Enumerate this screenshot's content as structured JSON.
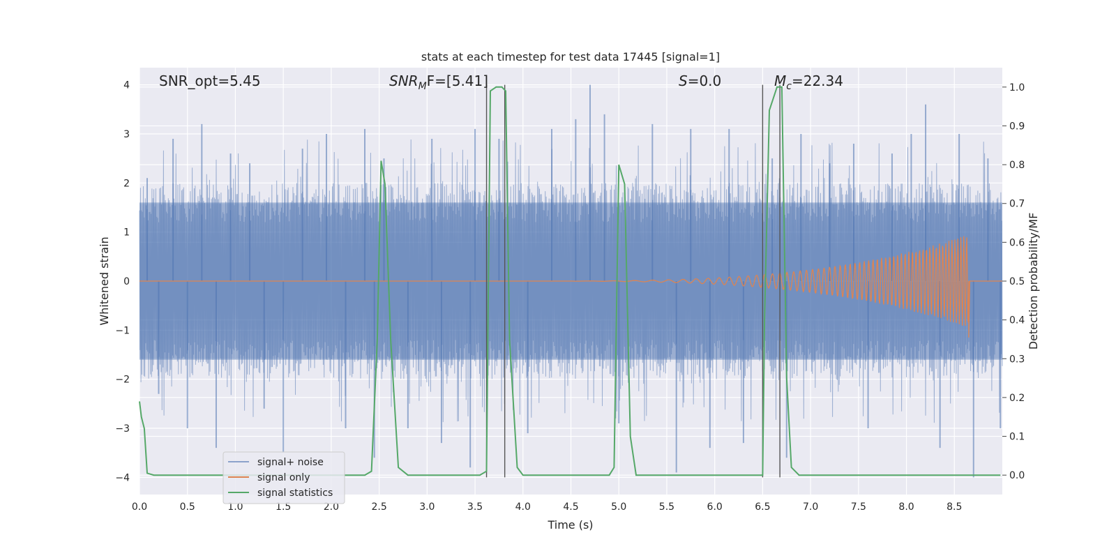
{
  "chart_data": {
    "type": "line",
    "title": "stats at each timestep for test data 17445 [signal=1]",
    "xlabel": "Time (s)",
    "ylabel_left": "Whitened strain",
    "ylabel_right": "Detection probability/MF",
    "xlim": [
      0.0,
      9.0
    ],
    "ylim_left": [
      -4.35,
      4.35
    ],
    "ylim_right": [
      -0.05,
      1.05
    ],
    "x_ticks": [
      "0.0",
      "0.5",
      "1.0",
      "1.5",
      "2.0",
      "2.5",
      "3.0",
      "3.5",
      "4.0",
      "4.5",
      "5.0",
      "5.5",
      "6.0",
      "6.5",
      "7.0",
      "7.5",
      "8.0",
      "8.5"
    ],
    "y_ticks_left": [
      "4",
      "3",
      "2",
      "1",
      "0",
      "−1",
      "−2",
      "−3",
      "−4"
    ],
    "y_ticks_right": [
      "1.0",
      "0.9",
      "0.8",
      "0.7",
      "0.6",
      "0.5",
      "0.4",
      "0.3",
      "0.2",
      "0.1",
      "0.0"
    ],
    "grid": true,
    "legend_position": "lower-left",
    "annotations": {
      "snr_opt": "SNR_opt=5.45",
      "snr_mf_base": "SNR",
      "snr_mf_sub": "M",
      "snr_mf_rest": "F=[5.41]",
      "s_italic": "S",
      "s_rest": "=0.0",
      "mc_italic": "M",
      "mc_sub": "c",
      "mc_rest": "=22.34"
    },
    "series": [
      {
        "name": "signal+ noise",
        "color": "#4c72b0",
        "alpha": 0.5,
        "description_band_left": [
          -1.6,
          1.6
        ],
        "peaks": [
          {
            "x": 0.08,
            "y": 2.1
          },
          {
            "x": 0.2,
            "y": -2.3
          },
          {
            "x": 0.35,
            "y": 2.9
          },
          {
            "x": 0.5,
            "y": -3.0
          },
          {
            "x": 0.65,
            "y": 3.2
          },
          {
            "x": 0.8,
            "y": -3.4
          },
          {
            "x": 0.95,
            "y": 2.6
          },
          {
            "x": 1.15,
            "y": 2.4
          },
          {
            "x": 1.3,
            "y": -2.6
          },
          {
            "x": 1.5,
            "y": -3.5
          },
          {
            "x": 1.7,
            "y": 2.7
          },
          {
            "x": 1.95,
            "y": 3.0
          },
          {
            "x": 2.15,
            "y": -3.0
          },
          {
            "x": 2.35,
            "y": 3.1
          },
          {
            "x": 2.45,
            "y": -3.6
          },
          {
            "x": 2.55,
            "y": 2.5
          },
          {
            "x": 2.8,
            "y": -3.0
          },
          {
            "x": 3.05,
            "y": 2.9
          },
          {
            "x": 3.15,
            "y": -3.3
          },
          {
            "x": 3.45,
            "y": -3.8
          },
          {
            "x": 3.5,
            "y": 3.1
          },
          {
            "x": 3.75,
            "y": 2.9
          },
          {
            "x": 4.05,
            "y": -3.1
          },
          {
            "x": 4.3,
            "y": 3.1
          },
          {
            "x": 4.55,
            "y": 3.3
          },
          {
            "x": 4.7,
            "y": 4.0
          },
          {
            "x": 4.85,
            "y": 3.4
          },
          {
            "x": 5.0,
            "y": -2.9
          },
          {
            "x": 5.35,
            "y": 3.2
          },
          {
            "x": 5.6,
            "y": -3.9
          },
          {
            "x": 5.75,
            "y": 3.1
          },
          {
            "x": 5.95,
            "y": -3.4
          },
          {
            "x": 6.15,
            "y": 3.1
          },
          {
            "x": 6.3,
            "y": -3.3
          },
          {
            "x": 6.6,
            "y": 2.5
          },
          {
            "x": 6.75,
            "y": -3.6
          },
          {
            "x": 6.9,
            "y": 3.0
          },
          {
            "x": 7.2,
            "y": 2.4
          },
          {
            "x": 7.45,
            "y": 2.8
          },
          {
            "x": 7.6,
            "y": -3.0
          },
          {
            "x": 7.85,
            "y": 2.6
          },
          {
            "x": 8.05,
            "y": 3.0
          },
          {
            "x": 8.2,
            "y": 3.6
          },
          {
            "x": 8.35,
            "y": -3.4
          },
          {
            "x": 8.55,
            "y": 3.0
          },
          {
            "x": 8.7,
            "y": -4.0
          },
          {
            "x": 8.85,
            "y": 2.5
          },
          {
            "x": 8.98,
            "y": -3.0
          }
        ]
      },
      {
        "name": "signal only",
        "color": "#dd8452",
        "chirp_start": 4.0,
        "chirp_end": 8.65,
        "max_amplitude": 0.95,
        "min_at_end": -1.15
      },
      {
        "name": "signal statistics",
        "color": "#55a868",
        "axis": "right",
        "x": [
          0.0,
          0.02,
          0.05,
          0.08,
          0.15,
          0.3,
          2.35,
          2.42,
          2.48,
          2.52,
          2.56,
          2.62,
          2.7,
          2.8,
          3.55,
          3.62,
          3.66,
          3.72,
          3.78,
          3.82,
          3.86,
          3.94,
          4.0,
          4.9,
          4.95,
          5.0,
          5.06,
          5.12,
          5.18,
          5.25,
          6.5,
          6.52,
          6.57,
          6.65,
          6.7,
          6.75,
          6.8,
          6.88,
          7.3,
          8.98
        ],
        "y": [
          0.19,
          0.15,
          0.12,
          0.005,
          0.0,
          0.0,
          0.0,
          0.01,
          0.35,
          0.81,
          0.75,
          0.35,
          0.02,
          0.0,
          0.0,
          0.01,
          0.99,
          1.0,
          1.0,
          0.99,
          0.35,
          0.02,
          0.0,
          0.0,
          0.02,
          0.8,
          0.75,
          0.1,
          0.0,
          0.0,
          0.0,
          0.4,
          0.94,
          1.0,
          1.0,
          0.25,
          0.02,
          0.0,
          0.0,
          0.0
        ]
      }
    ],
    "vertical_lines": [
      3.62,
      3.81,
      6.5,
      6.68
    ]
  }
}
